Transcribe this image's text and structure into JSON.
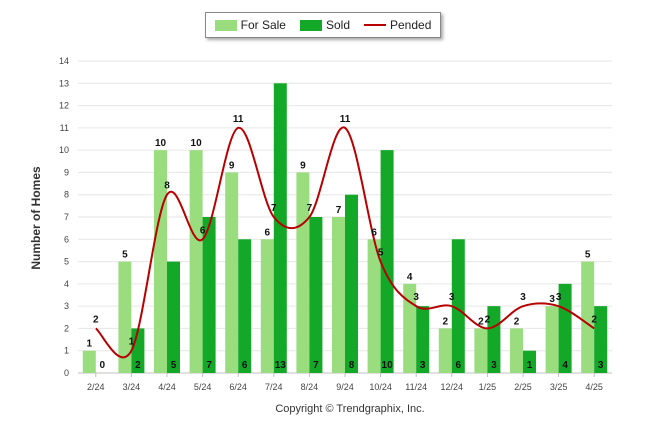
{
  "chart_data": {
    "type": "bar",
    "ylabel": "Number of Homes",
    "ylim": [
      0,
      14
    ],
    "yticks": [
      "0",
      "1",
      "2",
      "3",
      "4",
      "5",
      "6",
      "7",
      "8",
      "9",
      "10",
      "11",
      "12",
      "13",
      "14"
    ],
    "categories": [
      "2/24",
      "3/24",
      "4/24",
      "5/24",
      "6/24",
      "7/24",
      "8/24",
      "9/24",
      "10/24",
      "11/24",
      "12/24",
      "1/25",
      "2/25",
      "3/25",
      "4/25"
    ],
    "series": [
      {
        "name": "For Sale",
        "kind": "bar",
        "color": "#99dd7f",
        "values": [
          1,
          5,
          10,
          10,
          9,
          6,
          9,
          7,
          6,
          4,
          2,
          2,
          2,
          3,
          5
        ]
      },
      {
        "name": "Sold",
        "kind": "bar",
        "color": "#14a829",
        "values": [
          0,
          2,
          5,
          7,
          6,
          13,
          7,
          8,
          10,
          3,
          6,
          3,
          1,
          4,
          3
        ]
      },
      {
        "name": "Pended",
        "kind": "line",
        "color": "#b80000",
        "values": [
          2,
          1,
          8,
          6,
          11,
          7,
          7,
          11,
          5,
          3,
          3,
          2,
          3,
          3,
          2
        ]
      }
    ],
    "legend_position": "top-center",
    "grid": true
  },
  "footer": {
    "copyright": "Copyright © Trendgraphix, Inc."
  }
}
